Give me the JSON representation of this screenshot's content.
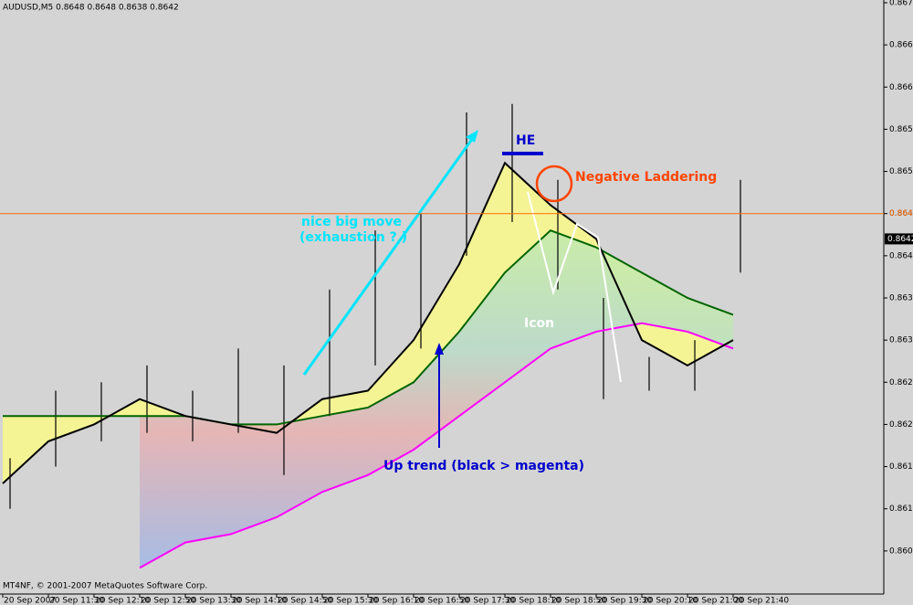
{
  "chart_data": {
    "type": "line",
    "title": "AUDUSD,M5  0.8648 0.8648 0.8638 0.8642",
    "footer": "MT4NF, © 2001-2007 MetaQuotes Software Corp.",
    "categories": [
      "20 Sep 2007",
      "20 Sep 11:30",
      "20 Sep 12:10",
      "20 Sep 12:50",
      "20 Sep 13:30",
      "20 Sep 14:10",
      "20 Sep 14:50",
      "20 Sep 15:30",
      "20 Sep 16:10",
      "20 Sep 16:50",
      "20 Sep 17:30",
      "20 Sep 18:10",
      "20 Sep 18:50",
      "20 Sep 19:30",
      "20 Sep 20:10",
      "20 Sep 21:00",
      "20 Sep 21:40"
    ],
    "ylim": [
      0.86,
      0.867
    ],
    "yticks": [
      {
        "value": 0.8605,
        "label": "0.8605"
      },
      {
        "value": 0.861,
        "label": "0.8610"
      },
      {
        "value": 0.8615,
        "label": "0.8615"
      },
      {
        "value": 0.862,
        "label": "0.8620"
      },
      {
        "value": 0.8625,
        "label": "0.8625"
      },
      {
        "value": 0.863,
        "label": "0.8630"
      },
      {
        "value": 0.8635,
        "label": "0.8635"
      },
      {
        "value": 0.864,
        "label": "0.8640"
      },
      {
        "value": 0.8645,
        "label": "0.8645"
      },
      {
        "value": 0.865,
        "label": "0.8650"
      },
      {
        "value": 0.8655,
        "label": "0.8655"
      },
      {
        "value": 0.866,
        "label": "0.8660"
      },
      {
        "value": 0.8665,
        "label": "0.8665"
      },
      {
        "value": 0.867,
        "label": "0.8670"
      }
    ],
    "series": [
      {
        "color": "#006400",
        "values": [
          0.8621,
          0.8621,
          0.8621,
          0.8621,
          0.8621,
          0.862,
          0.862,
          0.8621,
          0.8622,
          0.8625,
          0.8631,
          0.8638,
          0.8643,
          0.8641,
          0.8638,
          0.8635,
          0.8633
        ]
      },
      {
        "color": "#ff00ff",
        "values": [
          null,
          null,
          null,
          0.8603,
          0.8606,
          0.8607,
          0.8609,
          0.8612,
          0.8614,
          0.8617,
          0.8621,
          0.8625,
          0.8629,
          0.8631,
          0.8632,
          0.8631,
          0.8629
        ]
      },
      {
        "color": "#000000",
        "values": [
          0.8613,
          0.8618,
          0.862,
          0.8623,
          0.8621,
          0.862,
          0.8619,
          0.8623,
          0.8624,
          0.863,
          0.8639,
          0.8651,
          0.8646,
          0.8642,
          0.863,
          0.8627,
          0.863
        ]
      }
    ],
    "bars": {
      "color": "#000000",
      "highs": [
        0.8616,
        0.8624,
        0.8625,
        0.8627,
        0.8624,
        0.8629,
        0.8627,
        0.8636,
        0.8643,
        0.8645,
        0.8657,
        0.8658,
        0.8649,
        0.8635,
        0.8628,
        0.863,
        0.8649
      ],
      "lows": [
        0.861,
        0.8615,
        0.8618,
        0.8619,
        0.8618,
        0.8619,
        0.8614,
        0.8621,
        0.8627,
        0.8629,
        0.864,
        0.8644,
        0.8636,
        0.8623,
        0.8624,
        0.8624,
        0.8638
      ]
    },
    "hline": {
      "value": 0.8645,
      "label": "0.8645",
      "color": "#ff6a00"
    },
    "price_marker": {
      "value": 0.8642,
      "label": "0.8642"
    },
    "annotations": [
      {
        "text": "nice big move",
        "color": "#00e5ff"
      },
      {
        "text": "(exhaustion ? )",
        "color": "#00e5ff"
      },
      {
        "text": "HE",
        "color": "#0000cc"
      },
      {
        "text": "Negative Laddering",
        "color": "#ff4500"
      },
      {
        "text": "Icon",
        "color": "#ffffff"
      },
      {
        "text": "Up trend (black > magenta)",
        "color": "#0000cc"
      }
    ]
  }
}
